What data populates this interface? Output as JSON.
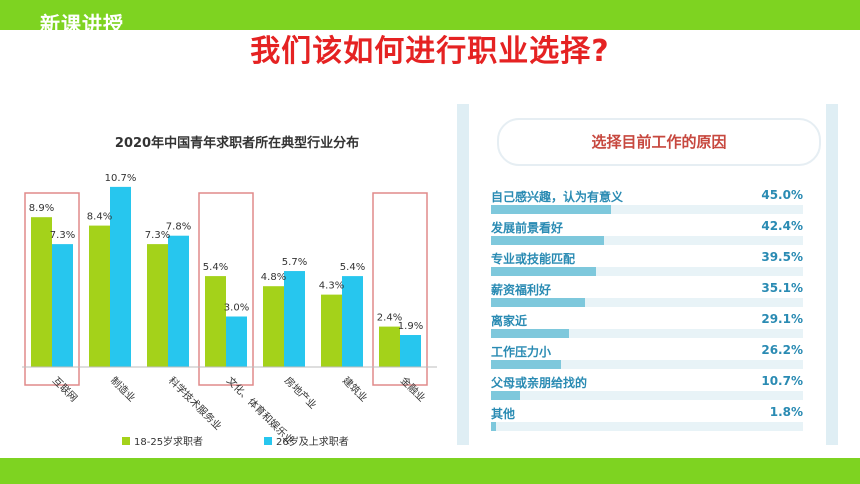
{
  "page": {
    "tag": "新课讲授",
    "title": "我们该如何进行职业选择?"
  },
  "chart_data": [
    {
      "type": "bar",
      "title": "2020年中国青年求职者所在典型行业分布",
      "categories": [
        "互联网",
        "制造业",
        "科学技术服务业",
        "文化、体育和娱乐业",
        "房地产业",
        "建筑业",
        "金融业"
      ],
      "series": [
        {
          "name": "18-25岁求职者",
          "values": [
            8.9,
            8.4,
            7.3,
            5.4,
            4.8,
            4.3,
            2.4
          ],
          "labels": [
            "8.9%",
            "8.4%",
            "7.3%",
            "5.4%",
            "4.8%",
            "4.3%",
            "2.4%"
          ],
          "color": "#a4d21a"
        },
        {
          "name": "26岁及上求职者",
          "values": [
            7.3,
            10.7,
            7.8,
            3.0,
            5.7,
            5.4,
            1.9
          ],
          "labels": [
            "7.3%",
            "10.7%",
            "7.8%",
            "3.0%",
            "5.7%",
            "5.4%",
            "1.9%"
          ],
          "color": "#27c6ee"
        }
      ],
      "highlighted_categories": [
        "互联网",
        "文化、体育和娱乐业",
        "金融业"
      ],
      "highlight_color": "#e08a8a",
      "ylim": [
        0,
        12
      ],
      "grid": false,
      "legend": "bottom"
    },
    {
      "type": "bar",
      "orientation": "horizontal",
      "title": "选择目前工作的原因",
      "categories": [
        "自己感兴趣，认为有意义",
        "发展前景看好",
        "专业或技能匹配",
        "薪资福利好",
        "离家近",
        "工作压力小",
        "父母或亲朋给找的",
        "其他"
      ],
      "values": [
        45.0,
        42.4,
        39.5,
        35.1,
        29.1,
        26.2,
        10.7,
        1.8
      ],
      "labels": [
        "45.0%",
        "42.4%",
        "39.5%",
        "35.1%",
        "29.1%",
        "26.2%",
        "10.7%",
        "1.8%"
      ],
      "color": "#7ec8dc",
      "xlim": [
        0,
        100
      ]
    }
  ]
}
